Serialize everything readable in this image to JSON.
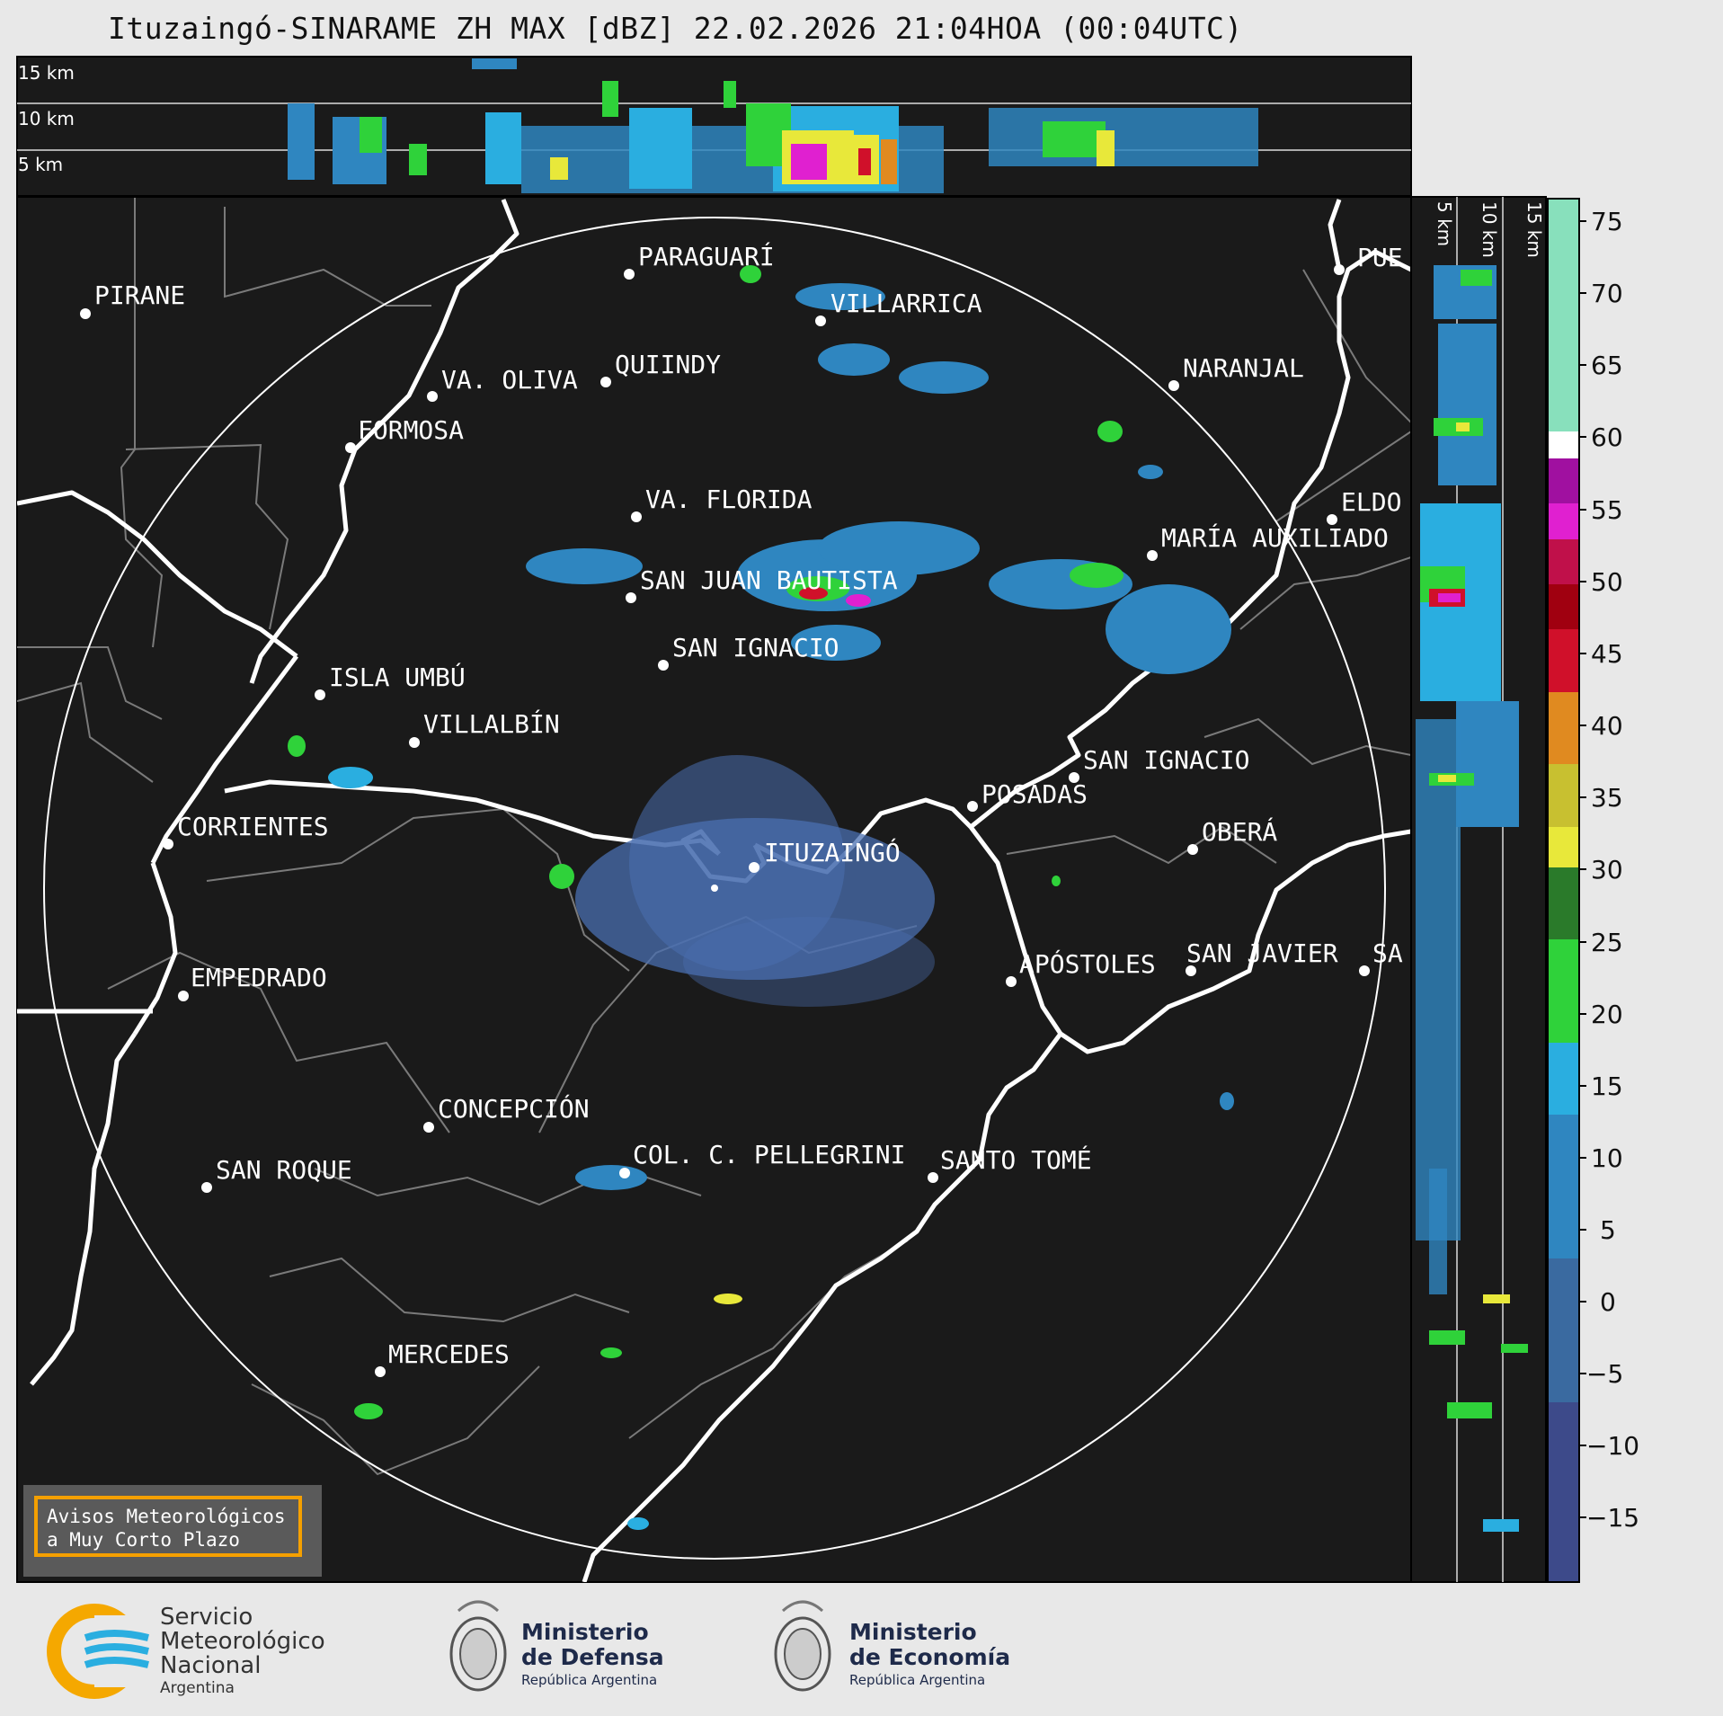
{
  "header": {
    "title": "Ituzaingó-SINARAME ZH MAX [dBZ] 22.02.2026 21:04HOA (00:04UTC)"
  },
  "top_profile": {
    "height_labels": [
      "15 km",
      "10 km",
      "5 km"
    ]
  },
  "side_profile": {
    "height_labels": [
      "5 km",
      "10 km",
      "15 km"
    ]
  },
  "map": {
    "radar_site": "ITUZAINGÓ",
    "cities": [
      {
        "name": "PIRANE"
      },
      {
        "name": "PARAGUARÍ"
      },
      {
        "name": "VILLARRICA"
      },
      {
        "name": "QUIINDY"
      },
      {
        "name": "VA. OLIVA"
      },
      {
        "name": "FORMOSA"
      },
      {
        "name": "NARANJAL"
      },
      {
        "name": "PUE"
      },
      {
        "name": "ELDO"
      },
      {
        "name": "VA. FLORIDA"
      },
      {
        "name": "MARÍA AUXILIADO"
      },
      {
        "name": "SAN JUAN BAUTISTA"
      },
      {
        "name": "SAN IGNACIO"
      },
      {
        "name": "ISLA UMBÚ"
      },
      {
        "name": "VILLALBÍN"
      },
      {
        "name": "SAN IGNACIO"
      },
      {
        "name": "POSADAS"
      },
      {
        "name": "CORRIENTES"
      },
      {
        "name": "OBERÁ"
      },
      {
        "name": "ITUZAINGÓ"
      },
      {
        "name": "EMPEDRADO"
      },
      {
        "name": "APÓSTOLES"
      },
      {
        "name": "SAN JAVIER"
      },
      {
        "name": "SA"
      },
      {
        "name": "CONCEPCIÓN"
      },
      {
        "name": "COL. C. PELLEGRINI"
      },
      {
        "name": "SANTO TOMÉ"
      },
      {
        "name": "SAN ROQUE"
      },
      {
        "name": "MERCEDES"
      }
    ]
  },
  "colorbar": {
    "unit": "dBZ",
    "ticks": [
      "75",
      "70",
      "65",
      "60",
      "55",
      "50",
      "45",
      "40",
      "35",
      "30",
      "25",
      "20",
      "15",
      "10",
      "5",
      "0",
      "−5",
      "−10",
      "−15"
    ],
    "colors": {
      "low": "#3d4a8a",
      "blue": "#2f86c0",
      "cyan": "#2aaee0",
      "green": "#2fd23a",
      "yellow": "#e8e83a",
      "orange": "#e08a20",
      "red": "#d0102a",
      "magenta": "#e020d0",
      "white": "#ffffff",
      "mint": "#88e0bc"
    }
  },
  "warning_box": {
    "line1": "Avisos Meteorológicos",
    "line2": "a Muy Corto Plazo",
    "border_color": "#f5a000"
  },
  "logos": {
    "smn": {
      "line1": "Servicio",
      "line2": "Meteorológico",
      "line3": "Nacional",
      "line4": "Argentina"
    },
    "defensa": {
      "line1": "Ministerio",
      "line2": "de Defensa",
      "line3": "República Argentina"
    },
    "economia": {
      "line1": "Ministerio",
      "line2": "de Economía",
      "line3": "República Argentina"
    }
  }
}
